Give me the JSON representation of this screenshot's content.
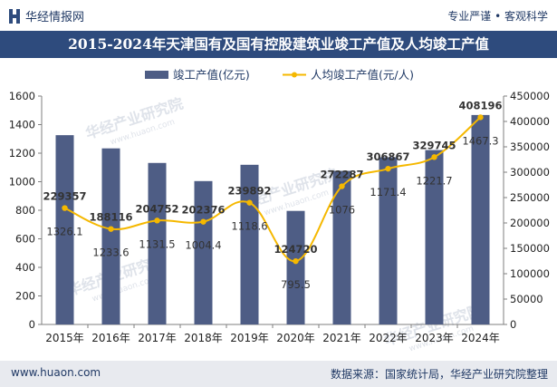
{
  "header": {
    "brand": "华经情报网",
    "tagline": "专业严谨 • 客观科学"
  },
  "title": "2015-2024年天津国有及国有控股建筑业竣工产值及人均竣工产值",
  "footer": {
    "url": "www.huaon.com",
    "source": "数据来源：国家统计局，华经产业研究院整理"
  },
  "watermark": {
    "text": "华经产业研究院",
    "url": "www.huaon.com"
  },
  "colors": {
    "bar": "#4e5d85",
    "line": "#f5b800",
    "title_bg": "#2e4b7d",
    "text": "#1f3864",
    "footer_bg": "#e8eaef"
  },
  "chart_data": {
    "type": "bar",
    "categories": [
      "2015年",
      "2016年",
      "2017年",
      "2018年",
      "2019年",
      "2020年",
      "2021年",
      "2022年",
      "2023年",
      "2024年"
    ],
    "series": [
      {
        "name": "竣工产值(亿元)",
        "type": "bar",
        "axis": "left",
        "values": [
          1326.1,
          1233.6,
          1131.5,
          1004.4,
          1118.6,
          795.5,
          1076,
          1171.4,
          1221.7,
          1467.3
        ],
        "labels": [
          "1326.1",
          "1233.6",
          "1131.5",
          "1004.4",
          "1118.6",
          "795.5",
          "1076",
          "1171.4",
          "1221.7",
          "1467.3"
        ]
      },
      {
        "name": "人均竣工产值(元/人)",
        "type": "line",
        "axis": "right",
        "values": [
          229357,
          188116,
          204752,
          202376,
          239892,
          124720,
          272287,
          306867,
          329745,
          408196
        ],
        "labels": [
          "229357",
          "188116",
          "204752",
          "202376",
          "239892",
          "124720",
          "272287",
          "306867",
          "329745",
          "408196"
        ]
      }
    ],
    "y_left": {
      "min": 0,
      "max": 1600,
      "ticks": [
        0,
        200,
        400,
        600,
        800,
        1000,
        1200,
        1400,
        1600
      ],
      "tick_labels": [
        "0",
        "200",
        "400",
        "600",
        "800",
        "1000",
        "1200",
        "1400",
        "1600"
      ]
    },
    "y_right": {
      "min": 0,
      "max": 450000,
      "ticks": [
        0,
        50000,
        100000,
        150000,
        200000,
        250000,
        300000,
        350000,
        400000,
        450000
      ],
      "tick_labels": [
        "0",
        "50000",
        "100000",
        "150000",
        "200000",
        "250000",
        "300000",
        "350000",
        "400000",
        "450000"
      ]
    },
    "grid": false,
    "legend_position": "top"
  }
}
